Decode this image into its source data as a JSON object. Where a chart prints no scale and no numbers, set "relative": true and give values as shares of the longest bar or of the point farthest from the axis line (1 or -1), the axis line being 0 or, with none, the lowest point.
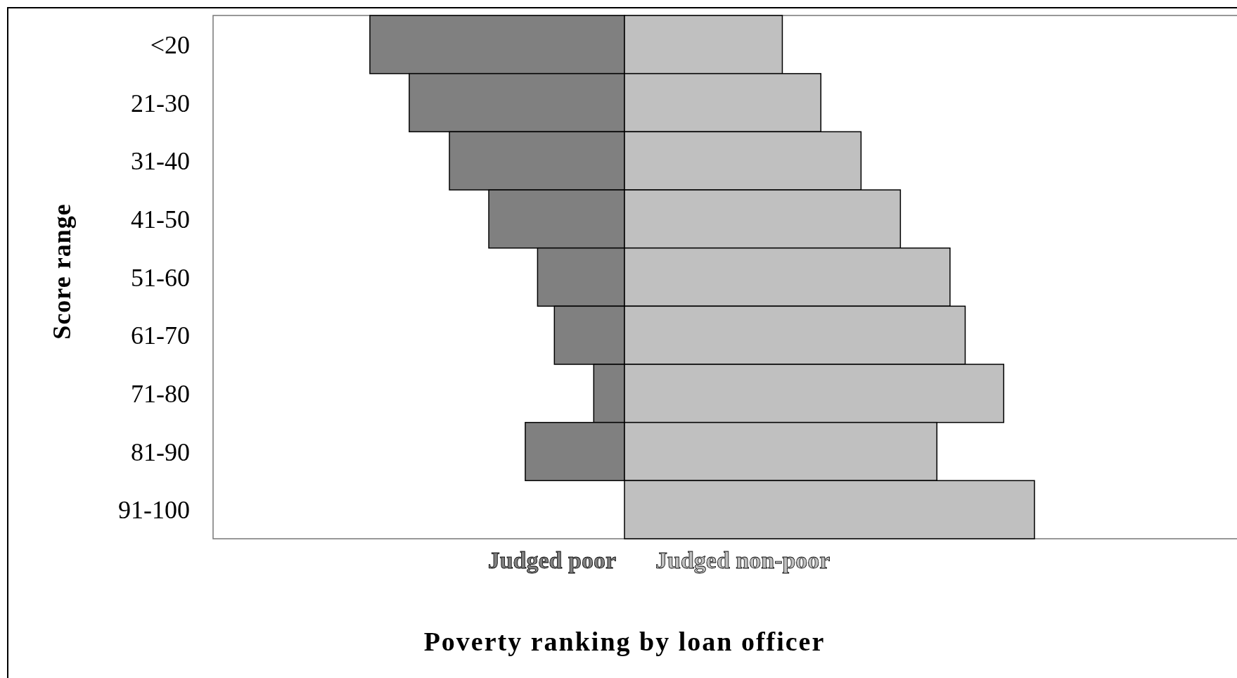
{
  "chart_data": {
    "type": "bar",
    "orientation": "horizontal",
    "stacked": true,
    "relative": true,
    "xlabel": "Poverty ranking by loan officer",
    "ylabel": "Score range",
    "categories": [
      "<20",
      "21-30",
      "31-40",
      "41-50",
      "51-60",
      "61-70",
      "71-80",
      "81-90",
      "91-100"
    ],
    "series": [
      {
        "name": "Judged poor",
        "color": "#808080",
        "values": [
          -0.621,
          -0.525,
          -0.427,
          -0.331,
          -0.212,
          -0.171,
          -0.075,
          -0.242,
          0
        ]
      },
      {
        "name": "Judged non-poor",
        "color": "#c0c0c0",
        "values": [
          0.385,
          0.479,
          0.577,
          0.673,
          0.794,
          0.831,
          0.925,
          0.762,
          1
        ]
      }
    ]
  }
}
